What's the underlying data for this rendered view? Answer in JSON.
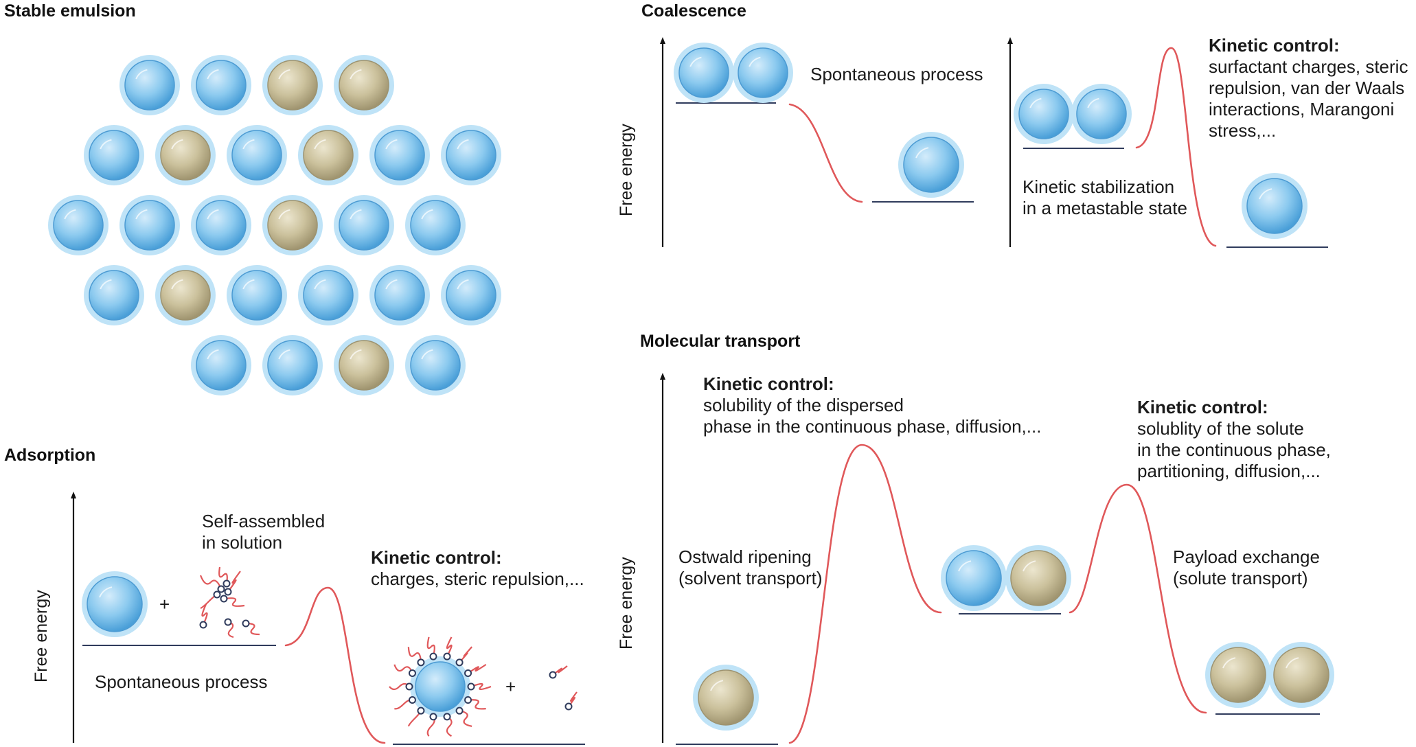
{
  "sections": {
    "stable_emulsion": "Stable emulsion",
    "coalescence": "Coalescence",
    "adsorption": "Adsorption",
    "molecular_transport": "Molecular transport"
  },
  "coalescence": {
    "y_axis": "Free energy",
    "spontaneous": "Spontaneous process",
    "kinetic_title": "Kinetic control:",
    "kinetic_lines": [
      "surfactant charges, steric",
      "repulsion, van der Waals",
      "interactions, Marangoni",
      "stress,..."
    ],
    "metastable_lines": [
      "Kinetic stabilization",
      "in a metastable state"
    ]
  },
  "adsorption": {
    "y_axis": "Free energy",
    "self_assembled_lines": [
      "Self-assembled",
      "in solution"
    ],
    "plus_1": "+",
    "plus_2": "+",
    "spontaneous": "Spontaneous process",
    "kinetic_title": "Kinetic control:",
    "kinetic_text": "charges, steric repulsion,..."
  },
  "molecular_transport": {
    "y_axis": "Free energy",
    "kinetic1_title": "Kinetic control:",
    "kinetic1_lines": [
      "solubility of the dispersed",
      "phase in the continuous phase, diffusion,..."
    ],
    "kinetic2_title": "Kinetic control:",
    "kinetic2_lines": [
      "solublity of the solute",
      "in the continuous phase,",
      "partitioning, diffusion,..."
    ],
    "ostwald_lines": [
      "Ostwald ripening",
      "(solvent transport)"
    ],
    "payload_lines": [
      "Payload exchange",
      "(solute transport)"
    ]
  },
  "colors": {
    "droplet_blue": "#7fc2ec",
    "droplet_tan": "#c9bf9a",
    "halo": "#bfe3f7",
    "energy_curve": "#e0585a",
    "baseline": "#2f3b5c",
    "axis": "#111111"
  },
  "emulsion_grid": {
    "rows": [
      [
        "blue",
        "blue",
        "tan",
        "tan"
      ],
      [
        "blue",
        "tan",
        "blue",
        "tan",
        "blue",
        "blue"
      ],
      [
        "blue",
        "blue",
        "blue",
        "tan",
        "blue",
        "blue"
      ],
      [
        "blue",
        "tan",
        "blue",
        "blue",
        "blue",
        "blue"
      ],
      [
        "blue",
        "blue",
        "tan",
        "blue"
      ]
    ]
  }
}
